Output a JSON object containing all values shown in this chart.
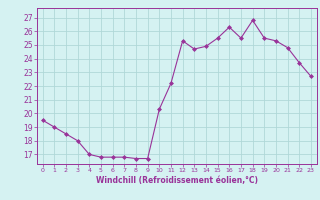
{
  "x": [
    0,
    1,
    2,
    3,
    4,
    5,
    6,
    7,
    8,
    9,
    10,
    11,
    12,
    13,
    14,
    15,
    16,
    17,
    18,
    19,
    20,
    21,
    22,
    23
  ],
  "y": [
    19.5,
    19.0,
    18.5,
    18.0,
    17.0,
    16.8,
    16.8,
    16.8,
    16.7,
    16.7,
    20.3,
    22.2,
    25.3,
    24.7,
    24.9,
    25.5,
    26.3,
    25.5,
    26.8,
    25.5,
    25.3,
    24.8,
    23.7,
    22.7
  ],
  "line_color": "#993399",
  "marker": "D",
  "marker_size": 2,
  "bg_color": "#d5f2f2",
  "grid_color": "#b0d8d8",
  "tick_color": "#993399",
  "label_color": "#993399",
  "xlabel": "Windchill (Refroidissement éolien,°C)",
  "xticks": [
    0,
    1,
    2,
    3,
    4,
    5,
    6,
    7,
    8,
    9,
    10,
    11,
    12,
    13,
    14,
    15,
    16,
    17,
    18,
    19,
    20,
    21,
    22,
    23
  ],
  "xtick_labels": [
    "0",
    "1",
    "2",
    "3",
    "4",
    "5",
    "6",
    "7",
    "8",
    "9",
    "10",
    "11",
    "12",
    "13",
    "14",
    "15",
    "16",
    "17",
    "18",
    "19",
    "20",
    "21",
    "22",
    "23"
  ],
  "yticks": [
    17,
    18,
    19,
    20,
    21,
    22,
    23,
    24,
    25,
    26,
    27
  ],
  "ylim": [
    16.3,
    27.7
  ],
  "xlim": [
    -0.5,
    23.5
  ]
}
